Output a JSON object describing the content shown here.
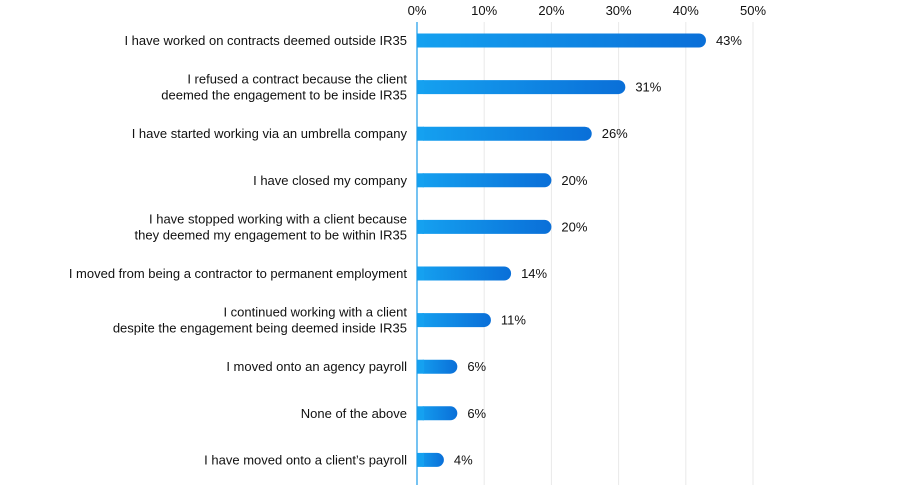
{
  "chart_data": {
    "type": "bar",
    "orientation": "horizontal",
    "title": "",
    "xlabel": "",
    "ylabel": "",
    "xlim": [
      0,
      50
    ],
    "ticks": [
      {
        "value": 0,
        "label": "0%"
      },
      {
        "value": 10,
        "label": "10%"
      },
      {
        "value": 20,
        "label": "20%"
      },
      {
        "value": 30,
        "label": "30%"
      },
      {
        "value": 40,
        "label": "40%"
      },
      {
        "value": 50,
        "label": "50%"
      }
    ],
    "tick_position": "top",
    "grid": true,
    "legend": "none",
    "bar_gradient": [
      "#15a1f0",
      "#0a6fd8"
    ],
    "axis_color": "#1a9be8",
    "categories": [
      [
        "I have worked on contracts deemed outside IR35"
      ],
      [
        "I refused a contract because the client",
        "deemed the engagement to be inside IR35"
      ],
      [
        "I have started working via an umbrella company"
      ],
      [
        "I have closed my company"
      ],
      [
        "I have stopped working with a client because",
        "they deemed my engagement to be within IR35"
      ],
      [
        "I moved from being a contractor to permanent employment"
      ],
      [
        "I continued working with a client",
        "despite the engagement being deemed inside IR35"
      ],
      [
        "I moved onto an agency payroll"
      ],
      [
        "None of the above"
      ],
      [
        "I have moved onto a client’s payroll"
      ]
    ],
    "values": [
      43,
      31,
      26,
      20,
      20,
      14,
      11,
      6,
      6,
      4
    ],
    "value_labels": [
      "43%",
      "31%",
      "26%",
      "20%",
      "20%",
      "14%",
      "11%",
      "6%",
      "6%",
      "4%"
    ]
  }
}
